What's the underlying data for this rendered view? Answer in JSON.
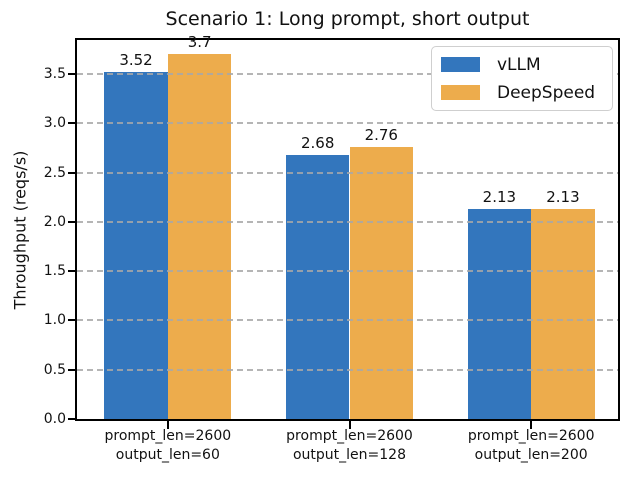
{
  "chart_data": {
    "type": "bar",
    "title": "Scenario 1: Long prompt, short output",
    "ylabel": "Throughput (reqs/s)",
    "categories": [
      [
        "prompt_len=2600",
        "output_len=60"
      ],
      [
        "prompt_len=2600",
        "output_len=128"
      ],
      [
        "prompt_len=2600",
        "output_len=200"
      ]
    ],
    "series": [
      {
        "name": "vLLM",
        "color": "#3376BD",
        "values": [
          3.52,
          2.68,
          2.13
        ],
        "labels": [
          "3.52",
          "2.68",
          "2.13"
        ]
      },
      {
        "name": "DeepSpeed",
        "color": "#EDAC4C",
        "values": [
          3.7,
          2.76,
          2.13
        ],
        "labels": [
          "3.7",
          "2.76",
          "2.13"
        ]
      }
    ],
    "yticks": [
      "0.0",
      "0.5",
      "1.0",
      "1.5",
      "2.0",
      "2.5",
      "3.0",
      "3.5"
    ],
    "ytick_values": [
      0,
      0.5,
      1,
      1.5,
      2,
      2.5,
      3,
      3.5
    ],
    "ylim": [
      0,
      3.885
    ],
    "bar_width_fraction": 0.35,
    "grid": "horizontal-dashed",
    "legend_position": "upper-right",
    "colors": {
      "vllm_blue": "#3376BD",
      "deepspeed_orange": "#EDAC4C",
      "grid_gray": "#b0b0b0",
      "spine_black": "#000000",
      "legend_border": "#cfcfcf"
    }
  }
}
